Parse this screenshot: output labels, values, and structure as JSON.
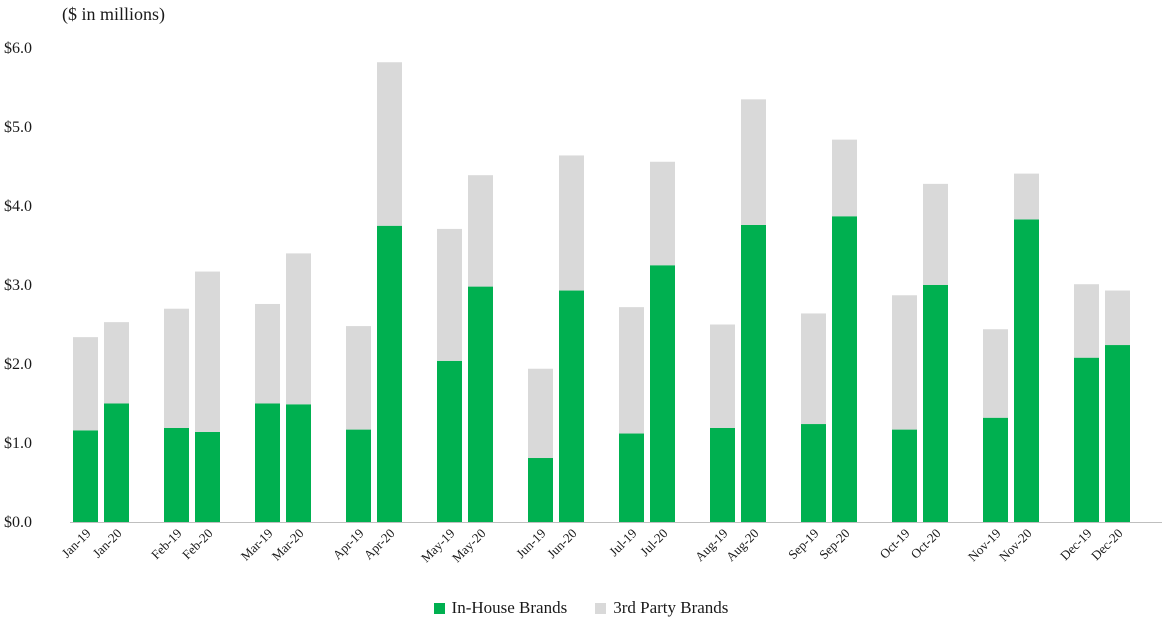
{
  "chart_data": {
    "type": "bar",
    "stacked": true,
    "unit_label": "($ in millions)",
    "y_ticks": [
      "$0.0",
      "$1.0",
      "$2.0",
      "$3.0",
      "$4.0",
      "$5.0",
      "$6.0"
    ],
    "ylim": [
      0,
      6
    ],
    "grid": false,
    "legend_position": "bottom-center",
    "groups": [
      "Jan",
      "Feb",
      "Mar",
      "Apr",
      "May",
      "Jun",
      "Jul",
      "Aug",
      "Sep",
      "Oct",
      "Nov",
      "Dec"
    ],
    "categories": [
      "Jan-19",
      "Jan-20",
      "Feb-19",
      "Feb-20",
      "Mar-19",
      "Mar-20",
      "Apr-19",
      "Apr-20",
      "May-19",
      "May-20",
      "Jun-19",
      "Jun-20",
      "Jul-19",
      "Jul-20",
      "Aug-19",
      "Aug-20",
      "Sep-19",
      "Sep-20",
      "Oct-19",
      "Oct-20",
      "Nov-19",
      "Nov-20",
      "Dec-19",
      "Dec-20"
    ],
    "series": [
      {
        "name": "In-House Brands",
        "color": "#00b050",
        "values": [
          1.16,
          1.5,
          1.19,
          1.14,
          1.5,
          1.49,
          1.17,
          3.75,
          2.04,
          2.98,
          0.81,
          2.93,
          1.12,
          3.25,
          1.19,
          3.76,
          1.24,
          3.87,
          1.17,
          3.0,
          1.32,
          3.83,
          2.08,
          2.24
        ]
      },
      {
        "name": "3rd Party Brands",
        "color": "#d9d9d9",
        "values": [
          1.18,
          1.03,
          1.51,
          2.03,
          1.26,
          1.91,
          1.31,
          2.07,
          1.67,
          1.41,
          1.13,
          1.71,
          1.6,
          1.31,
          1.31,
          1.59,
          1.4,
          0.97,
          1.7,
          1.28,
          1.12,
          0.58,
          0.93,
          0.69
        ]
      }
    ]
  }
}
